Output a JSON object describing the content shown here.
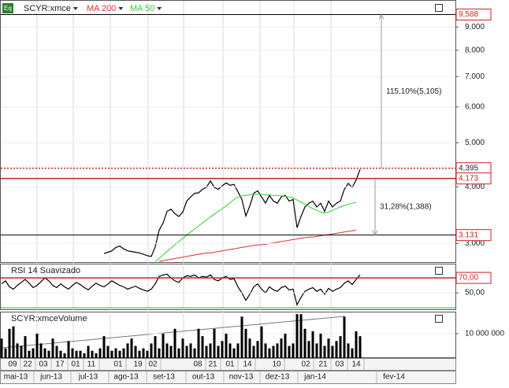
{
  "chart_data": [
    {
      "type": "line",
      "log_scale": true,
      "ylim": [
        2.73,
        10.28
      ],
      "yticks": [
        {
          "value": 3,
          "label": "3,000"
        },
        {
          "value": 4,
          "label": "4,000"
        },
        {
          "value": 5,
          "label": "5,000"
        },
        {
          "value": 6,
          "label": "6,000"
        },
        {
          "value": 7,
          "label": "7,000"
        },
        {
          "value": 8,
          "label": "8,000"
        },
        {
          "value": 9,
          "label": "9,000"
        }
      ],
      "series": [
        {
          "name": "SCYR:xmce",
          "color": "#000000",
          "values": [
            null,
            null,
            null,
            null,
            null,
            null,
            null,
            null,
            null,
            null,
            null,
            null,
            null,
            null,
            null,
            null,
            null,
            null,
            null,
            null,
            null,
            null,
            null,
            null,
            null,
            null,
            2.85,
            2.87,
            2.89,
            2.94,
            2.96,
            2.92,
            2.89,
            2.88,
            2.87,
            2.86,
            2.84,
            2.82,
            2.81,
            2.95,
            3.21,
            3.33,
            3.53,
            3.57,
            3.49,
            3.44,
            3.52,
            3.72,
            3.8,
            3.87,
            3.88,
            3.95,
            3.99,
            4.12,
            3.99,
            3.95,
            4.02,
            4.08,
            4.03,
            4.05,
            3.9,
            3.75,
            3.45,
            3.63,
            3.87,
            3.92,
            3.8,
            3.68,
            3.83,
            3.72,
            3.68,
            3.8,
            3.83,
            3.72,
            3.75,
            3.25,
            3.44,
            3.61,
            3.68,
            3.72,
            3.61,
            3.68,
            3.53,
            3.72,
            3.61,
            3.68,
            3.72,
            3.95,
            4.07,
            3.99,
            4.14,
            4.37
          ]
        },
        {
          "name": "MA 200",
          "color": "#e03030",
          "values": [
            null,
            null,
            null,
            null,
            null,
            null,
            null,
            null,
            null,
            null,
            null,
            null,
            null,
            null,
            null,
            null,
            null,
            null,
            null,
            null,
            null,
            null,
            null,
            null,
            null,
            null,
            null,
            null,
            null,
            null,
            null,
            null,
            null,
            null,
            null,
            null,
            null,
            null,
            null,
            null,
            2.74,
            2.75,
            2.76,
            2.77,
            2.78,
            2.79,
            2.8,
            2.81,
            2.82,
            2.83,
            2.84,
            2.85,
            2.86,
            2.86,
            2.87,
            2.88,
            2.89,
            2.9,
            2.91,
            2.92,
            2.93,
            2.94,
            2.95,
            2.96,
            2.97,
            2.98,
            2.98,
            2.99,
            3.0,
            3.01,
            3.02,
            3.03,
            3.04,
            3.05,
            3.06,
            3.07,
            3.08,
            3.09,
            3.1,
            3.1,
            3.11,
            3.12,
            3.13,
            3.14,
            3.15,
            3.16,
            3.17,
            3.18,
            3.19,
            3.2,
            3.21,
            null
          ]
        },
        {
          "name": "MA 50",
          "color": "#33cc33",
          "values": [
            null,
            null,
            null,
            null,
            null,
            null,
            null,
            null,
            null,
            null,
            null,
            null,
            null,
            null,
            null,
            null,
            null,
            null,
            null,
            null,
            null,
            null,
            null,
            null,
            null,
            null,
            null,
            null,
            null,
            null,
            null,
            null,
            null,
            null,
            null,
            null,
            null,
            null,
            null,
            2.74,
            2.78,
            2.83,
            2.88,
            2.93,
            2.98,
            3.03,
            3.08,
            3.13,
            3.18,
            3.23,
            3.28,
            3.33,
            3.38,
            3.43,
            3.48,
            3.53,
            3.58,
            3.63,
            3.69,
            3.75,
            3.8,
            3.82,
            3.83,
            3.84,
            3.85,
            3.85,
            3.85,
            3.84,
            3.84,
            3.83,
            3.83,
            3.82,
            3.81,
            3.8,
            3.78,
            3.74,
            3.7,
            3.66,
            3.62,
            3.58,
            3.55,
            3.52,
            3.5,
            3.52,
            3.55,
            3.58,
            3.61,
            3.64,
            3.66,
            3.68,
            3.7,
            null
          ]
        }
      ],
      "levels": [
        {
          "value": 9.588,
          "label": "9,588",
          "color": "#000000"
        },
        {
          "value": 4.395,
          "label": "4,395",
          "color": "#cc2222"
        },
        {
          "value": 4.173,
          "label": "4,173",
          "color": "#cc2222"
        },
        {
          "value": 3.131,
          "label": "3,131",
          "color": "#000000"
        }
      ],
      "annotations": [
        "115,10%(5,105)",
        "31,28%(1,388)"
      ]
    },
    {
      "type": "line",
      "title": "RSI 14 Suavizado",
      "ylim": [
        28,
        88
      ],
      "yticks": [
        {
          "value": 50,
          "label": "50,00"
        }
      ],
      "levels": [
        {
          "value": 70,
          "label": "70,00",
          "color": "#cc2222"
        },
        {
          "value": 30,
          "color": "#33aa33"
        }
      ],
      "series": [
        {
          "color": "#000000",
          "values": [
            62,
            66,
            58,
            55,
            60,
            64,
            68,
            63,
            57,
            60,
            65,
            70,
            66,
            60,
            57,
            62,
            58,
            55,
            60,
            64,
            61,
            57,
            54,
            59,
            63,
            60,
            58,
            62,
            66,
            63,
            60,
            58,
            55,
            57,
            59,
            56,
            54,
            52,
            55,
            62,
            72,
            74,
            75,
            70,
            66,
            64,
            70,
            73,
            72,
            74,
            70,
            72,
            71,
            74,
            68,
            66,
            70,
            72,
            68,
            69,
            58,
            50,
            40,
            48,
            58,
            62,
            55,
            50,
            58,
            54,
            52,
            57,
            59,
            54,
            55,
            34,
            44,
            52,
            55,
            57,
            52,
            55,
            48,
            56,
            52,
            55,
            57,
            63,
            66,
            61,
            68,
            74
          ]
        }
      ]
    },
    {
      "type": "bar",
      "title": "SCYR:xmceVolume",
      "color": "#000000",
      "ylim": [
        0,
        18700000
      ],
      "yticks": [
        {
          "value": 10000000,
          "label": "10 000 000"
        }
      ],
      "values": [
        8000000,
        4000000,
        12000000,
        13000000,
        6000000,
        5000000,
        9000000,
        3000000,
        4000000,
        10000000,
        6000000,
        4000000,
        3000000,
        8000000,
        5000000,
        3000000,
        2000000,
        7000000,
        4000000,
        3000000,
        3000000,
        2000000,
        5000000,
        3000000,
        2000000,
        4000000,
        9000000,
        5000000,
        3000000,
        4000000,
        3000000,
        4000000,
        6000000,
        8000000,
        5000000,
        3000000,
        4000000,
        3000000,
        6000000,
        9000000,
        4000000,
        10000000,
        6000000,
        5000000,
        12000000,
        4000000,
        8000000,
        5000000,
        6000000,
        4000000,
        12000000,
        9000000,
        5000000,
        6000000,
        12000000,
        5000000,
        7000000,
        10000000,
        6000000,
        4000000,
        6000000,
        17000000,
        12000000,
        8000000,
        5000000,
        7000000,
        13000000,
        6000000,
        4000000,
        5000000,
        6000000,
        8000000,
        10000000,
        5000000,
        6000000,
        18000000,
        18000000,
        12000000,
        7000000,
        11000000,
        6000000,
        10000000,
        5000000,
        8000000,
        5000000,
        7000000,
        9000000,
        17000000,
        6000000,
        4000000,
        11000000,
        9000000
      ]
    }
  ],
  "x_axis": {
    "days": [
      "09",
      "22",
      "03",
      "17",
      "01",
      "11",
      "01",
      "19",
      "02",
      "08",
      "21",
      "01",
      "14",
      "10",
      "02",
      "21",
      "03",
      "14"
    ],
    "months": [
      "mai-13",
      "jun-13",
      "jul-13",
      "ago-13",
      "set-13",
      "out-13",
      "nov-13",
      "dez-13",
      "jan-14",
      "fev-14"
    ]
  }
}
